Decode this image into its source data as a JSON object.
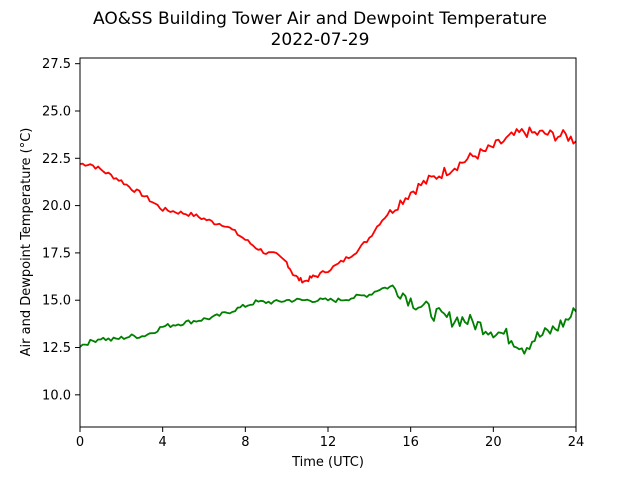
{
  "chart_data": {
    "type": "line",
    "title": "AO&SS Building Tower Air and Dewpoint Temperature",
    "subtitle": "2022-07-29",
    "xlabel": "Time (UTC)",
    "ylabel": "Air and Dewpoint Temperature (°C)",
    "xlim": [
      0,
      24
    ],
    "ylim": [
      8.3,
      27.8
    ],
    "xticks": [
      0,
      4,
      8,
      12,
      16,
      20,
      24
    ],
    "xtick_labels": [
      "0",
      "4",
      "8",
      "12",
      "16",
      "20",
      "24"
    ],
    "yticks": [
      10.0,
      12.5,
      15.0,
      17.5,
      20.0,
      22.5,
      25.0,
      27.5
    ],
    "ytick_labels": [
      "10.0",
      "12.5",
      "15.0",
      "17.5",
      "20.0",
      "22.5",
      "25.0",
      "27.5"
    ],
    "grid": false,
    "legend": "none",
    "series": [
      {
        "color": "#ff0000",
        "x": [
          0,
          0.5,
          1,
          1.5,
          2,
          2.5,
          3,
          3.5,
          4,
          4.5,
          5,
          5.5,
          6,
          6.5,
          7,
          7.5,
          8,
          8.5,
          9,
          9.5,
          10,
          10.3,
          10.6,
          10.9,
          11.2,
          11.5,
          12,
          12.5,
          13,
          13.5,
          14,
          14.5,
          15,
          15.5,
          16,
          16.5,
          17,
          17.5,
          18,
          18.5,
          19,
          19.5,
          20,
          20.5,
          21,
          21.5,
          22,
          22.5,
          23,
          23.5,
          24
        ],
        "y": [
          22.2,
          22.2,
          21.9,
          21.6,
          21.3,
          20.9,
          20.6,
          20.2,
          19.8,
          19.7,
          19.6,
          19.5,
          19.3,
          19.1,
          19.0,
          18.6,
          18.2,
          17.8,
          17.5,
          17.4,
          17.0,
          16.4,
          16.1,
          16.0,
          16.2,
          16.3,
          16.6,
          16.9,
          17.3,
          17.7,
          18.3,
          19.1,
          19.7,
          20.2,
          20.7,
          21.1,
          21.4,
          21.7,
          22.0,
          22.3,
          22.6,
          22.8,
          23.1,
          23.4,
          23.7,
          23.9,
          23.8,
          23.8,
          23.7,
          23.7,
          23.4
        ]
      },
      {
        "color": "#008000",
        "x": [
          0,
          0.5,
          1,
          1.5,
          2,
          2.5,
          3,
          3.5,
          4,
          4.5,
          5,
          5.5,
          6,
          6.5,
          7,
          7.5,
          8,
          8.5,
          9,
          9.5,
          10,
          10.5,
          11,
          11.5,
          12,
          12.5,
          13,
          13.5,
          14,
          14.5,
          15,
          15.5,
          16,
          16.5,
          17,
          17.5,
          18,
          18.5,
          19,
          19.5,
          20,
          20.5,
          21,
          21.5,
          22,
          22.5,
          23,
          23.5,
          24
        ],
        "y": [
          12.6,
          12.8,
          13.0,
          12.9,
          13.0,
          13.1,
          13.1,
          13.3,
          13.6,
          13.7,
          13.8,
          13.9,
          14.0,
          14.1,
          14.3,
          14.5,
          14.7,
          14.9,
          14.9,
          14.9,
          15.0,
          15.0,
          15.0,
          15.0,
          15.0,
          15.0,
          15.1,
          15.2,
          15.3,
          15.6,
          15.7,
          15.5,
          15.0,
          14.7,
          14.4,
          14.1,
          14.0,
          14.0,
          13.8,
          13.6,
          13.4,
          13.2,
          12.9,
          12.5,
          13.0,
          13.2,
          13.5,
          13.9,
          14.4
        ]
      }
    ]
  }
}
